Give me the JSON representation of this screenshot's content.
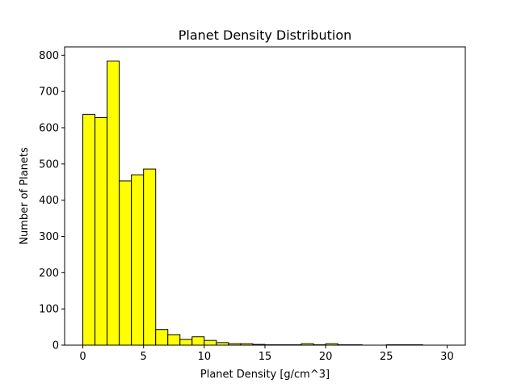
{
  "chart_data": {
    "type": "bar",
    "title": "Planet Density Distribution",
    "xlabel": "Planet Density [g/cm^3]",
    "ylabel": "Number of Planets",
    "xlim": [
      -1.5,
      31.5
    ],
    "ylim": [
      0,
      823
    ],
    "xticks": [
      0,
      5,
      10,
      15,
      20,
      25,
      30
    ],
    "yticks": [
      0,
      100,
      200,
      300,
      400,
      500,
      600,
      700,
      800
    ],
    "bin_edges": [
      0,
      1,
      2,
      3,
      4,
      5,
      6,
      7,
      8,
      9,
      10,
      11,
      12,
      13,
      14,
      15,
      16,
      17,
      18,
      19,
      20,
      21,
      22,
      23,
      24,
      25,
      26,
      27,
      28,
      29,
      30
    ],
    "values": [
      637,
      628,
      784,
      453,
      470,
      486,
      43,
      29,
      16,
      23,
      13,
      7,
      4,
      4,
      2,
      1,
      1,
      1,
      4,
      1,
      4,
      1,
      1,
      0,
      0,
      1,
      1,
      1,
      0,
      0
    ],
    "bar_color": "#ffff00",
    "edge_color": "#000000",
    "grid": false
  }
}
